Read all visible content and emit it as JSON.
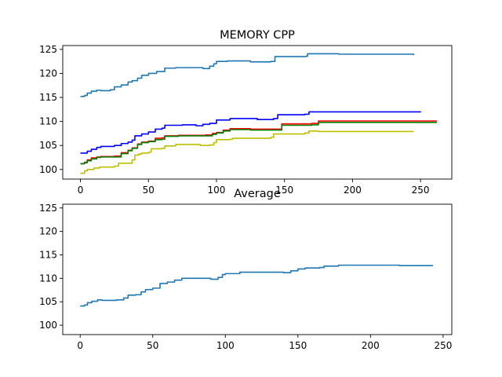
{
  "chart_data": [
    {
      "type": "line",
      "title": "MEMORY CPP",
      "xlabel": "",
      "ylabel": "",
      "xlim": [
        -13,
        273
      ],
      "ylim": [
        98,
        125.8
      ],
      "xticks": [
        0,
        50,
        100,
        150,
        200,
        250
      ],
      "yticks": [
        100,
        105,
        110,
        115,
        120,
        125
      ],
      "grid": false,
      "series": [
        {
          "color": "#1f77b4",
          "points": [
            [
              0,
              115.2
            ],
            [
              3,
              115.4
            ],
            [
              5,
              115.9
            ],
            [
              8,
              116.3
            ],
            [
              12,
              116.5
            ],
            [
              15,
              116.4
            ],
            [
              22,
              116.6
            ],
            [
              25,
              117.2
            ],
            [
              30,
              117.6
            ],
            [
              35,
              118.2
            ],
            [
              38,
              118.5
            ],
            [
              42,
              119.0
            ],
            [
              45,
              119.6
            ],
            [
              50,
              120.0
            ],
            [
              56,
              120.4
            ],
            [
              60,
              120.4
            ],
            [
              62,
              121.1
            ],
            [
              70,
              121.2
            ],
            [
              85,
              121.2
            ],
            [
              90,
              121.0
            ],
            [
              95,
              121.5
            ],
            [
              98,
              122.0
            ],
            [
              100,
              122.5
            ],
            [
              105,
              122.5
            ],
            [
              108,
              122.6
            ],
            [
              115,
              122.6
            ],
            [
              125,
              122.4
            ],
            [
              140,
              122.5
            ],
            [
              143,
              123.5
            ],
            [
              155,
              123.5
            ],
            [
              166,
              123.6
            ],
            [
              167,
              124.1
            ],
            [
              190,
              124.0
            ],
            [
              205,
              124.0
            ],
            [
              245,
              123.8
            ]
          ]
        },
        {
          "color": "#0000ff",
          "points": [
            [
              0,
              103.4
            ],
            [
              5,
              103.8
            ],
            [
              8,
              104.2
            ],
            [
              12,
              104.6
            ],
            [
              15,
              104.8
            ],
            [
              25,
              105.0
            ],
            [
              30,
              105.4
            ],
            [
              35,
              105.7
            ],
            [
              38,
              106.1
            ],
            [
              40,
              107.0
            ],
            [
              45,
              107.4
            ],
            [
              50,
              107.8
            ],
            [
              55,
              108.4
            ],
            [
              60,
              108.6
            ],
            [
              62,
              109.2
            ],
            [
              75,
              109.3
            ],
            [
              85,
              109.1
            ],
            [
              90,
              109.4
            ],
            [
              95,
              109.6
            ],
            [
              100,
              110.3
            ],
            [
              105,
              110.3
            ],
            [
              110,
              110.6
            ],
            [
              130,
              110.4
            ],
            [
              142,
              110.6
            ],
            [
              145,
              111.4
            ],
            [
              165,
              111.5
            ],
            [
              168,
              112.0
            ],
            [
              200,
              112.0
            ],
            [
              250,
              111.9
            ]
          ]
        },
        {
          "color": "#ff0000",
          "points": [
            [
              0,
              101.2
            ],
            [
              3,
              101.5
            ],
            [
              5,
              102.0
            ],
            [
              8,
              102.4
            ],
            [
              12,
              102.6
            ],
            [
              15,
              102.7
            ],
            [
              25,
              102.8
            ],
            [
              30,
              103.5
            ],
            [
              35,
              104.0
            ],
            [
              38,
              104.5
            ],
            [
              42,
              105.3
            ],
            [
              45,
              105.7
            ],
            [
              50,
              105.9
            ],
            [
              55,
              106.5
            ],
            [
              60,
              106.6
            ],
            [
              62,
              107.0
            ],
            [
              72,
              107.1
            ],
            [
              85,
              107.1
            ],
            [
              92,
              107.2
            ],
            [
              97,
              107.5
            ],
            [
              100,
              107.7
            ],
            [
              105,
              108.2
            ],
            [
              110,
              108.5
            ],
            [
              120,
              108.5
            ],
            [
              125,
              108.4
            ],
            [
              145,
              108.4
            ],
            [
              148,
              109.5
            ],
            [
              170,
              109.6
            ],
            [
              175,
              110.1
            ],
            [
              190,
              110.1
            ],
            [
              210,
              110.1
            ],
            [
              262,
              110.1
            ]
          ]
        },
        {
          "color": "#008000",
          "points": [
            [
              0,
              101.2
            ],
            [
              3,
              101.4
            ],
            [
              5,
              101.8
            ],
            [
              8,
              102.2
            ],
            [
              12,
              102.5
            ],
            [
              15,
              102.6
            ],
            [
              25,
              102.6
            ],
            [
              30,
              103.3
            ],
            [
              35,
              103.9
            ],
            [
              38,
              104.4
            ],
            [
              42,
              105.2
            ],
            [
              45,
              105.6
            ],
            [
              50,
              105.8
            ],
            [
              55,
              106.2
            ],
            [
              60,
              106.3
            ],
            [
              62,
              106.9
            ],
            [
              72,
              107.0
            ],
            [
              85,
              107.0
            ],
            [
              92,
              107.0
            ],
            [
              97,
              107.3
            ],
            [
              100,
              107.6
            ],
            [
              105,
              108.0
            ],
            [
              110,
              108.3
            ],
            [
              120,
              108.3
            ],
            [
              125,
              108.2
            ],
            [
              145,
              108.2
            ],
            [
              148,
              109.2
            ],
            [
              170,
              109.3
            ],
            [
              175,
              109.8
            ],
            [
              190,
              109.8
            ],
            [
              210,
              109.8
            ],
            [
              262,
              109.8
            ]
          ]
        },
        {
          "color": "#bfbf00",
          "points": [
            [
              0,
              99.2
            ],
            [
              3,
              99.7
            ],
            [
              5,
              100.0
            ],
            [
              10,
              100.3
            ],
            [
              14,
              100.5
            ],
            [
              20,
              100.5
            ],
            [
              25,
              100.7
            ],
            [
              28,
              101.3
            ],
            [
              35,
              101.3
            ],
            [
              38,
              102.0
            ],
            [
              40,
              103.0
            ],
            [
              43,
              103.2
            ],
            [
              45,
              103.4
            ],
            [
              50,
              103.6
            ],
            [
              52,
              104.3
            ],
            [
              60,
              104.4
            ],
            [
              62,
              104.9
            ],
            [
              70,
              105.2
            ],
            [
              85,
              105.2
            ],
            [
              88,
              105.0
            ],
            [
              95,
              105.1
            ],
            [
              98,
              105.6
            ],
            [
              100,
              106.2
            ],
            [
              110,
              106.3
            ],
            [
              112,
              106.5
            ],
            [
              130,
              106.5
            ],
            [
              135,
              106.5
            ],
            [
              140,
              106.7
            ],
            [
              142,
              107.4
            ],
            [
              160,
              107.4
            ],
            [
              165,
              107.6
            ],
            [
              168,
              108.0
            ],
            [
              175,
              107.9
            ],
            [
              190,
              107.9
            ],
            [
              245,
              107.9
            ]
          ]
        }
      ]
    },
    {
      "type": "line",
      "title": "Average",
      "xlabel": "",
      "ylabel": "",
      "xlim": [
        -12,
        256
      ],
      "ylim": [
        98,
        125.8
      ],
      "xticks": [
        0,
        50,
        100,
        150,
        200,
        250
      ],
      "yticks": [
        100,
        105,
        110,
        115,
        120,
        125
      ],
      "grid": false,
      "series": [
        {
          "color": "#1f77b4",
          "points": [
            [
              0,
              104.1
            ],
            [
              3,
              104.3
            ],
            [
              5,
              104.8
            ],
            [
              8,
              105.1
            ],
            [
              12,
              105.4
            ],
            [
              15,
              105.3
            ],
            [
              25,
              105.4
            ],
            [
              30,
              105.8
            ],
            [
              33,
              106.4
            ],
            [
              38,
              106.5
            ],
            [
              42,
              107.1
            ],
            [
              45,
              107.6
            ],
            [
              50,
              107.9
            ],
            [
              55,
              108.9
            ],
            [
              60,
              109.2
            ],
            [
              62,
              109.2
            ],
            [
              65,
              109.6
            ],
            [
              70,
              110.0
            ],
            [
              80,
              110.0
            ],
            [
              90,
              109.8
            ],
            [
              95,
              110.2
            ],
            [
              98,
              110.8
            ],
            [
              100,
              111.0
            ],
            [
              105,
              111.0
            ],
            [
              110,
              111.3
            ],
            [
              125,
              111.3
            ],
            [
              140,
              111.2
            ],
            [
              145,
              111.6
            ],
            [
              150,
              112.0
            ],
            [
              155,
              112.2
            ],
            [
              165,
              112.3
            ],
            [
              168,
              112.6
            ],
            [
              178,
              112.8
            ],
            [
              200,
              112.8
            ],
            [
              220,
              112.7
            ],
            [
              243,
              112.7
            ]
          ]
        }
      ]
    }
  ]
}
